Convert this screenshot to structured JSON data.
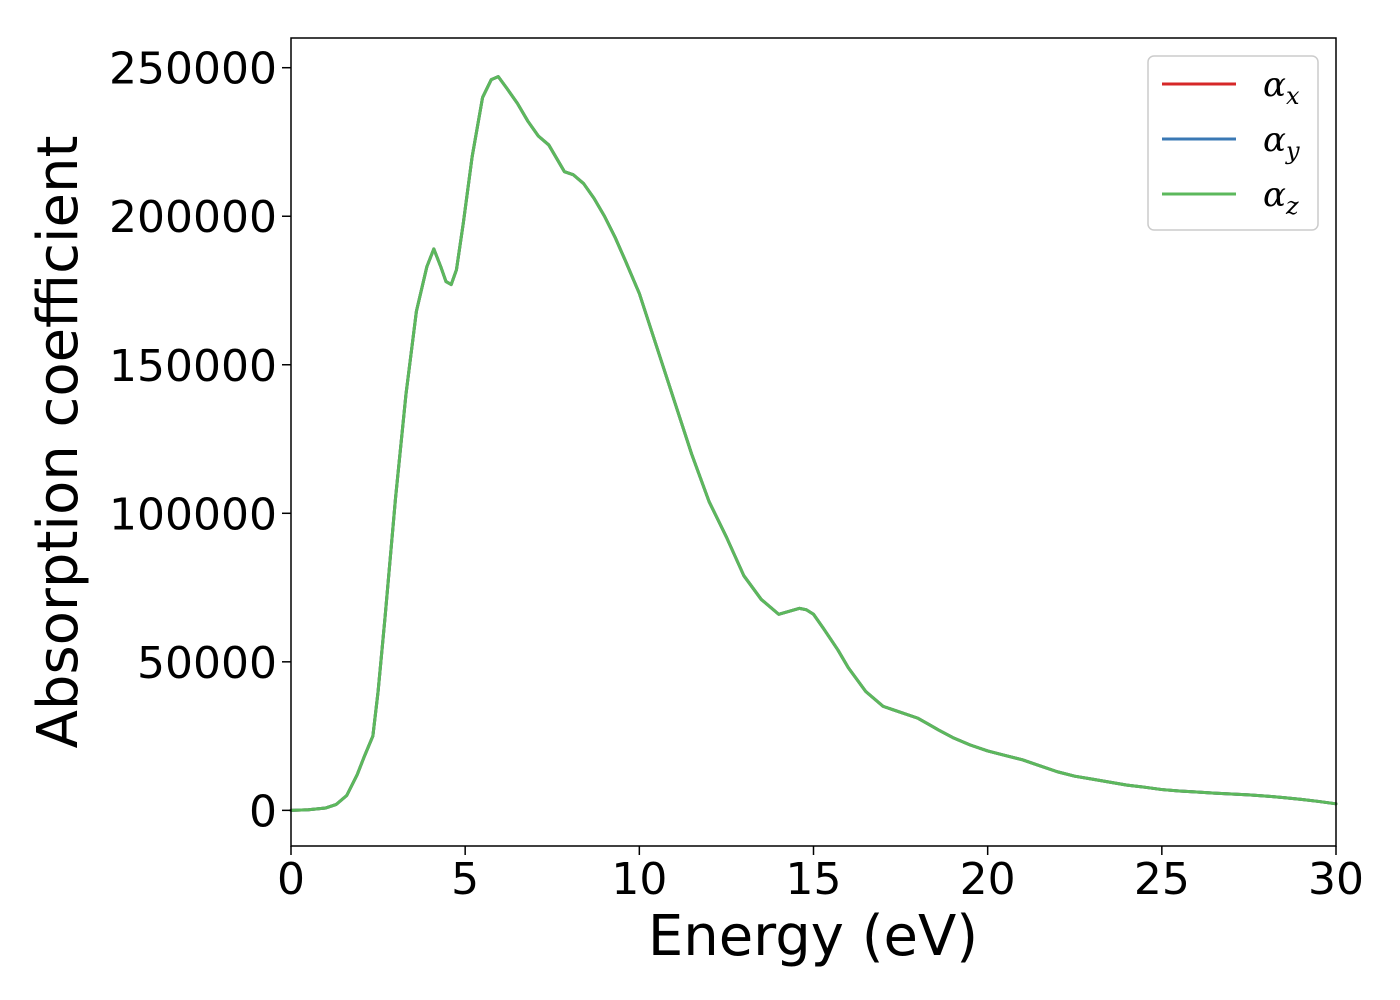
{
  "chart_data": {
    "type": "line",
    "xlabel": "Energy (eV)",
    "ylabel": "Absorption coefficient",
    "xlim": [
      0,
      30
    ],
    "ylim": [
      -12000,
      260000
    ],
    "xticks": [
      0,
      5,
      10,
      15,
      20,
      25,
      30
    ],
    "yticks": [
      0,
      50000,
      100000,
      150000,
      200000,
      250000
    ],
    "grid": false,
    "legend": "top-right",
    "series": [
      {
        "name": "α",
        "subscript": "x",
        "color": "#d62728",
        "x": [
          0,
          0.5,
          1.0,
          1.3,
          1.6,
          1.9,
          2.1,
          2.35,
          2.5,
          2.7,
          3.0,
          3.3,
          3.6,
          3.9,
          4.1,
          4.3,
          4.45,
          4.6,
          4.75,
          4.95,
          5.2,
          5.5,
          5.75,
          5.95,
          6.2,
          6.5,
          6.8,
          7.1,
          7.4,
          7.6,
          7.85,
          8.1,
          8.4,
          8.7,
          9.0,
          9.3,
          9.6,
          10.0,
          10.5,
          11.0,
          11.5,
          12.0,
          12.5,
          13.0,
          13.5,
          14.0,
          14.3,
          14.6,
          14.8,
          15.0,
          15.3,
          15.7,
          16.0,
          16.5,
          17.0,
          17.5,
          18.0,
          18.3,
          18.6,
          19.0,
          19.5,
          20.0,
          20.5,
          21.0,
          21.5,
          22.0,
          22.5,
          23.0,
          23.5,
          24.0,
          24.5,
          25.0,
          25.5,
          26.0,
          26.5,
          27.0,
          27.5,
          28.0,
          28.5,
          29.0,
          29.5,
          30.0
        ],
        "y": [
          0,
          200,
          800,
          2000,
          5000,
          12000,
          18000,
          25000,
          40000,
          65000,
          105000,
          140000,
          168000,
          183000,
          189000,
          183000,
          178000,
          177000,
          182000,
          198000,
          220000,
          240000,
          246000,
          247000,
          243000,
          238000,
          232000,
          227000,
          224000,
          220000,
          215000,
          214000,
          211000,
          206000,
          200000,
          193000,
          185000,
          174000,
          156000,
          138000,
          120000,
          104000,
          92000,
          79000,
          71000,
          66000,
          67000,
          68000,
          67500,
          66000,
          61000,
          54000,
          48000,
          40000,
          35000,
          33000,
          31000,
          29000,
          27000,
          24500,
          22000,
          20000,
          18500,
          17000,
          15000,
          13000,
          11500,
          10500,
          9500,
          8500,
          7800,
          7000,
          6500,
          6200,
          5800,
          5500,
          5200,
          4800,
          4300,
          3700,
          3000,
          2200
        ]
      },
      {
        "name": "α",
        "subscript": "y",
        "color": "#3a78b4",
        "x": [
          0,
          0.5,
          1.0,
          1.3,
          1.6,
          1.9,
          2.1,
          2.35,
          2.5,
          2.7,
          3.0,
          3.3,
          3.6,
          3.9,
          4.1,
          4.3,
          4.45,
          4.6,
          4.75,
          4.95,
          5.2,
          5.5,
          5.75,
          5.95,
          6.2,
          6.5,
          6.8,
          7.1,
          7.4,
          7.6,
          7.85,
          8.1,
          8.4,
          8.7,
          9.0,
          9.3,
          9.6,
          10.0,
          10.5,
          11.0,
          11.5,
          12.0,
          12.5,
          13.0,
          13.5,
          14.0,
          14.3,
          14.6,
          14.8,
          15.0,
          15.3,
          15.7,
          16.0,
          16.5,
          17.0,
          17.5,
          18.0,
          18.3,
          18.6,
          19.0,
          19.5,
          20.0,
          20.5,
          21.0,
          21.5,
          22.0,
          22.5,
          23.0,
          23.5,
          24.0,
          24.5,
          25.0,
          25.5,
          26.0,
          26.5,
          27.0,
          27.5,
          28.0,
          28.5,
          29.0,
          29.5,
          30.0
        ],
        "y": [
          0,
          200,
          800,
          2000,
          5000,
          12000,
          18000,
          25000,
          40000,
          65000,
          105000,
          140000,
          168000,
          183000,
          189000,
          183000,
          178000,
          177000,
          182000,
          198000,
          220000,
          240000,
          246000,
          247000,
          243000,
          238000,
          232000,
          227000,
          224000,
          220000,
          215000,
          214000,
          211000,
          206000,
          200000,
          193000,
          185000,
          174000,
          156000,
          138000,
          120000,
          104000,
          92000,
          79000,
          71000,
          66000,
          67000,
          68000,
          67500,
          66000,
          61000,
          54000,
          48000,
          40000,
          35000,
          33000,
          31000,
          29000,
          27000,
          24500,
          22000,
          20000,
          18500,
          17000,
          15000,
          13000,
          11500,
          10500,
          9500,
          8500,
          7800,
          7000,
          6500,
          6200,
          5800,
          5500,
          5200,
          4800,
          4300,
          3700,
          3000,
          2200
        ]
      },
      {
        "name": "α",
        "subscript": "z",
        "color": "#5cb85c",
        "x": [
          0,
          0.5,
          1.0,
          1.3,
          1.6,
          1.9,
          2.1,
          2.35,
          2.5,
          2.7,
          3.0,
          3.3,
          3.6,
          3.9,
          4.1,
          4.3,
          4.45,
          4.6,
          4.75,
          4.95,
          5.2,
          5.5,
          5.75,
          5.95,
          6.2,
          6.5,
          6.8,
          7.1,
          7.4,
          7.6,
          7.85,
          8.1,
          8.4,
          8.7,
          9.0,
          9.3,
          9.6,
          10.0,
          10.5,
          11.0,
          11.5,
          12.0,
          12.5,
          13.0,
          13.5,
          14.0,
          14.3,
          14.6,
          14.8,
          15.0,
          15.3,
          15.7,
          16.0,
          16.5,
          17.0,
          17.5,
          18.0,
          18.3,
          18.6,
          19.0,
          19.5,
          20.0,
          20.5,
          21.0,
          21.5,
          22.0,
          22.5,
          23.0,
          23.5,
          24.0,
          24.5,
          25.0,
          25.5,
          26.0,
          26.5,
          27.0,
          27.5,
          28.0,
          28.5,
          29.0,
          29.5,
          30.0
        ],
        "y": [
          0,
          200,
          800,
          2000,
          5000,
          12000,
          18000,
          25000,
          40000,
          65000,
          105000,
          140000,
          168000,
          183000,
          189000,
          183000,
          178000,
          177000,
          182000,
          198000,
          220000,
          240000,
          246000,
          247000,
          243000,
          238000,
          232000,
          227000,
          224000,
          220000,
          215000,
          214000,
          211000,
          206000,
          200000,
          193000,
          185000,
          174000,
          156000,
          138000,
          120000,
          104000,
          92000,
          79000,
          71000,
          66000,
          67000,
          68000,
          67500,
          66000,
          61000,
          54000,
          48000,
          40000,
          35000,
          33000,
          31000,
          29000,
          27000,
          24500,
          22000,
          20000,
          18500,
          17000,
          15000,
          13000,
          11500,
          10500,
          9500,
          8500,
          7800,
          7000,
          6500,
          6200,
          5800,
          5500,
          5200,
          4800,
          4300,
          3700,
          3000,
          2200
        ]
      }
    ]
  }
}
